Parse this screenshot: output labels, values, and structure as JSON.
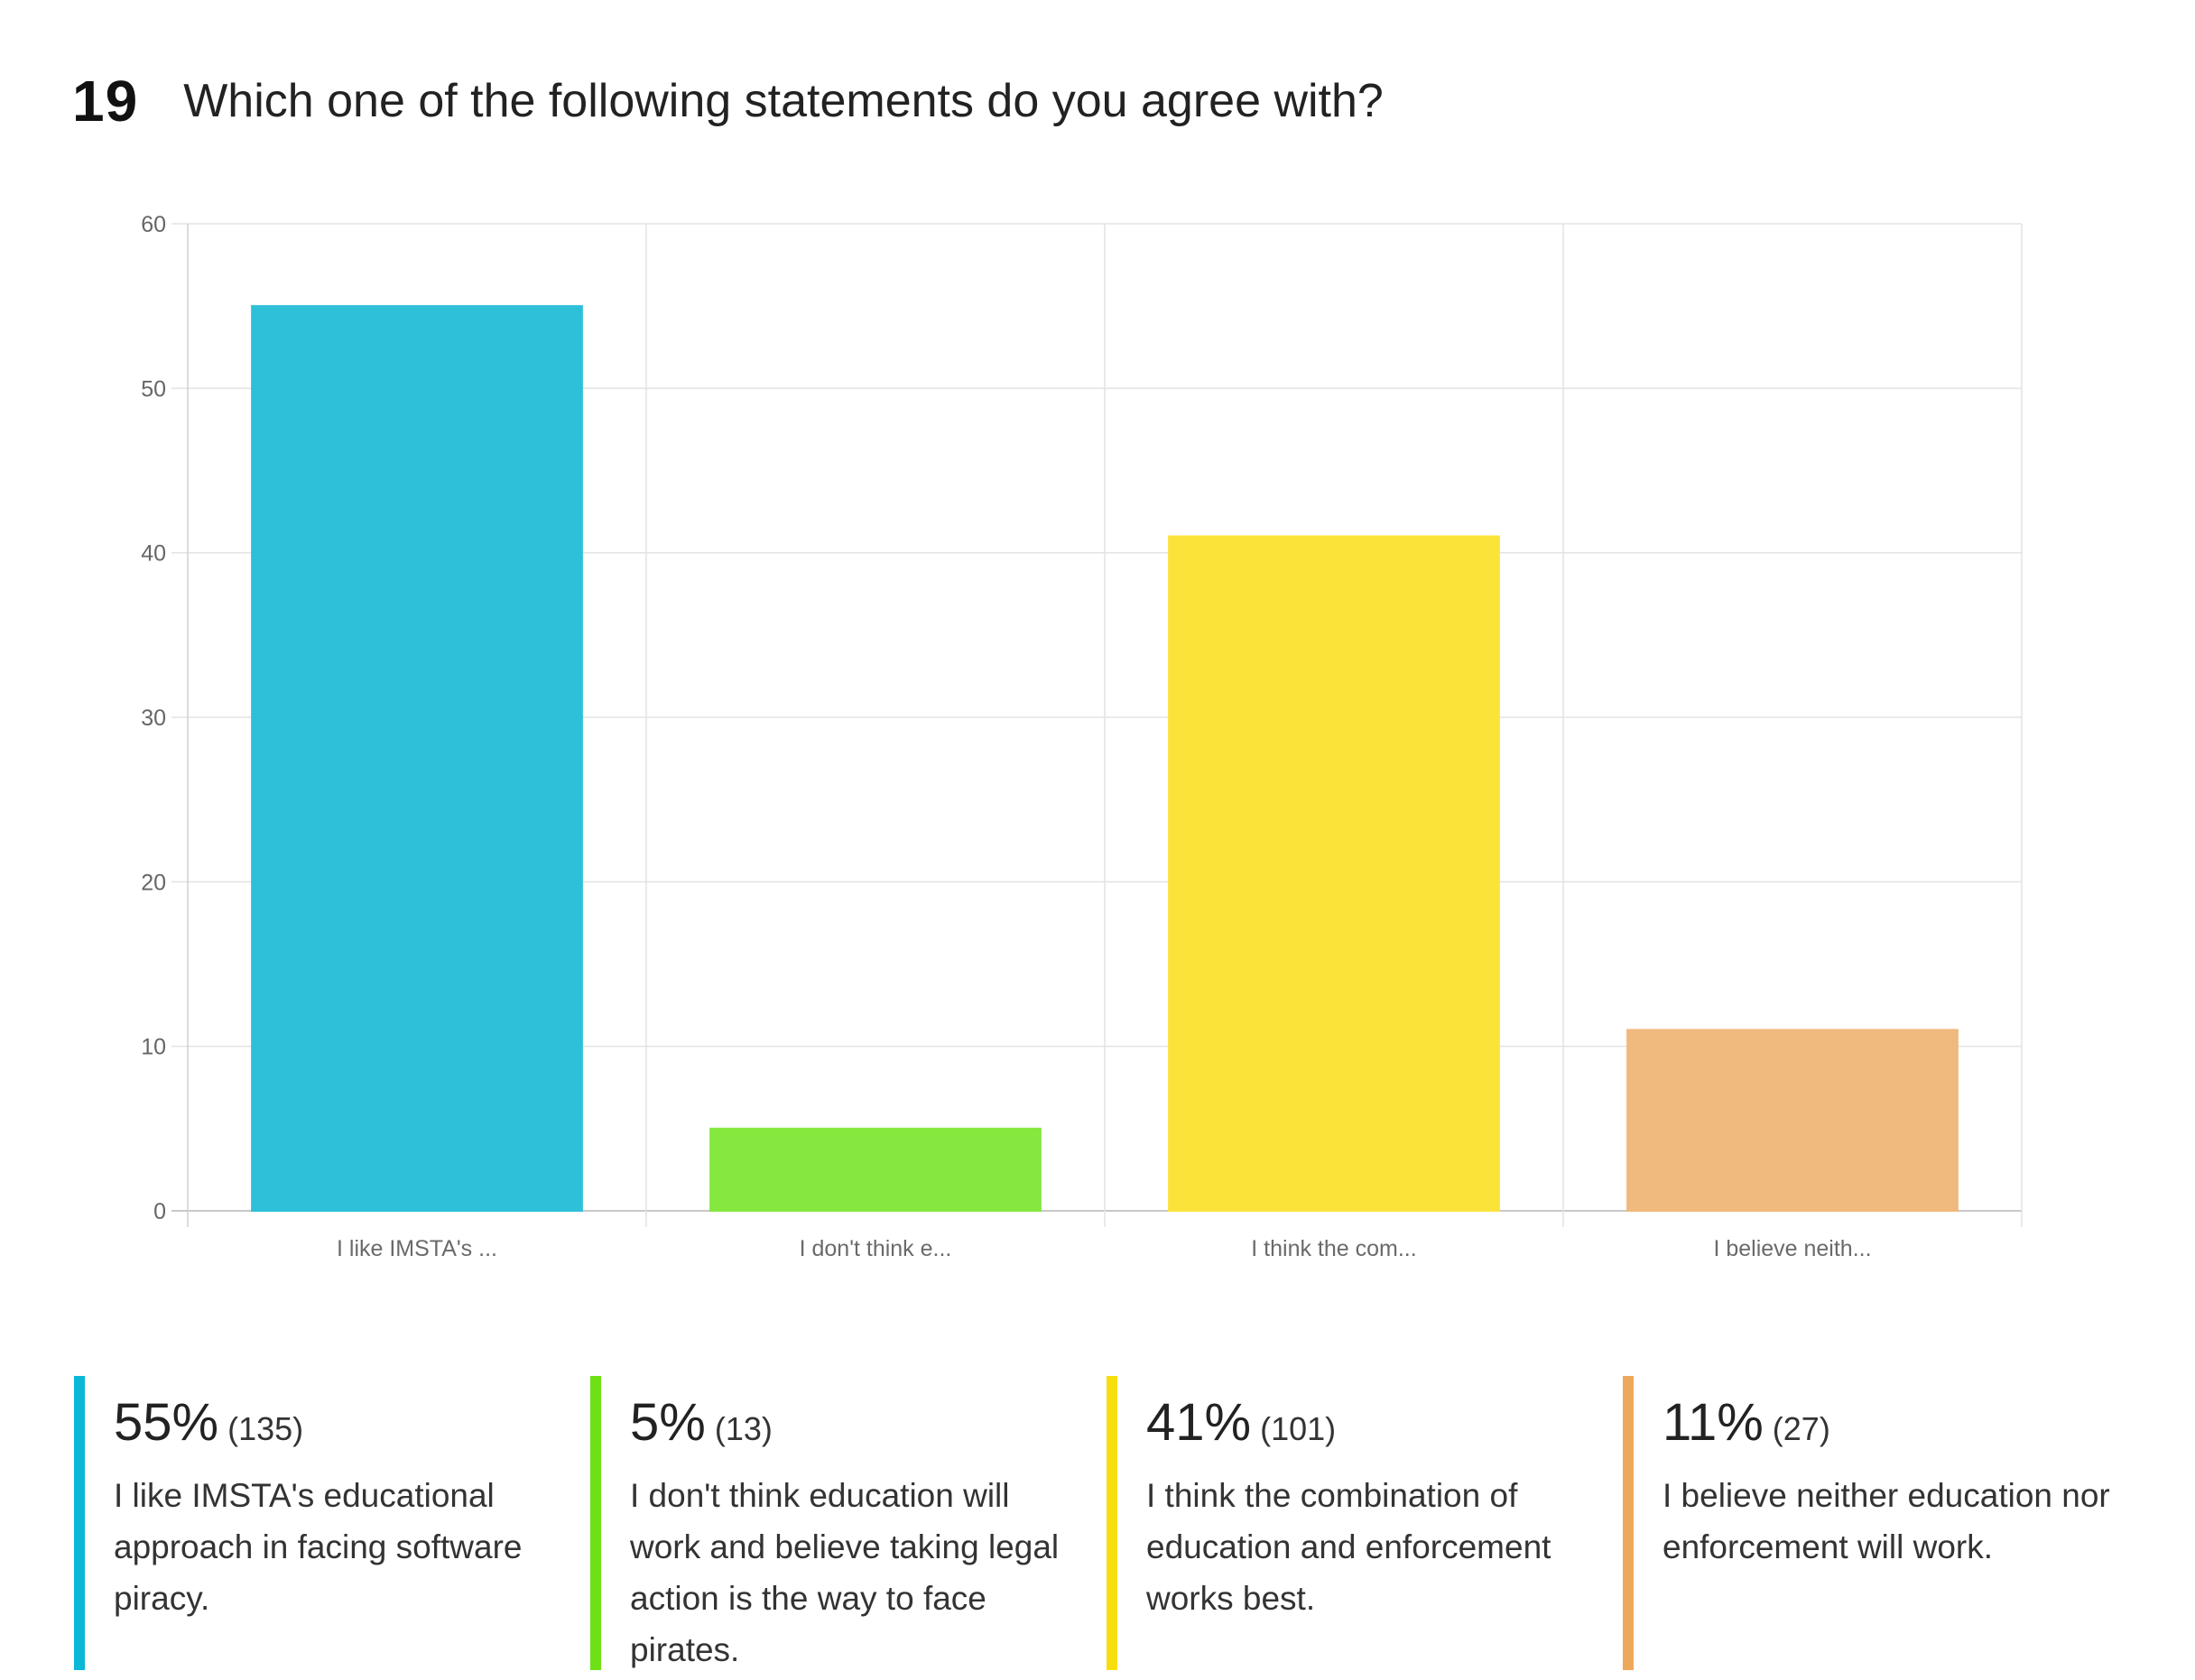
{
  "question": {
    "number": "19",
    "title": "Which one of the following statements do you agree with?"
  },
  "chart_data": {
    "type": "bar",
    "categories": [
      "I like IMSTA's ...",
      "I don't think e...",
      "I think the com...",
      "I believe neith..."
    ],
    "values": [
      55,
      5,
      41,
      11
    ],
    "ylim": [
      0,
      60
    ],
    "yticks": [
      0,
      10,
      20,
      30,
      40,
      50,
      60
    ],
    "grid": true,
    "colors": [
      "#2ec0d8",
      "#86e83f",
      "#fce33a",
      "#f0b97d"
    ]
  },
  "legend": [
    {
      "percent": "55%",
      "count": "(135)",
      "label": "I like IMSTA's educational approach in facing software piracy.",
      "color": "#08b8d6"
    },
    {
      "percent": "5%",
      "count": "(13)",
      "label": "I don't think education will work and believe taking legal action is the way to face pirates.",
      "color": "#6ee016"
    },
    {
      "percent": "41%",
      "count": "(101)",
      "label": "I think the combination of education and enforcement works best.",
      "color": "#f9de0f"
    },
    {
      "percent": "11%",
      "count": "(27)",
      "label": "I believe neither education nor enforcement will work.",
      "color": "#eea85c"
    }
  ]
}
